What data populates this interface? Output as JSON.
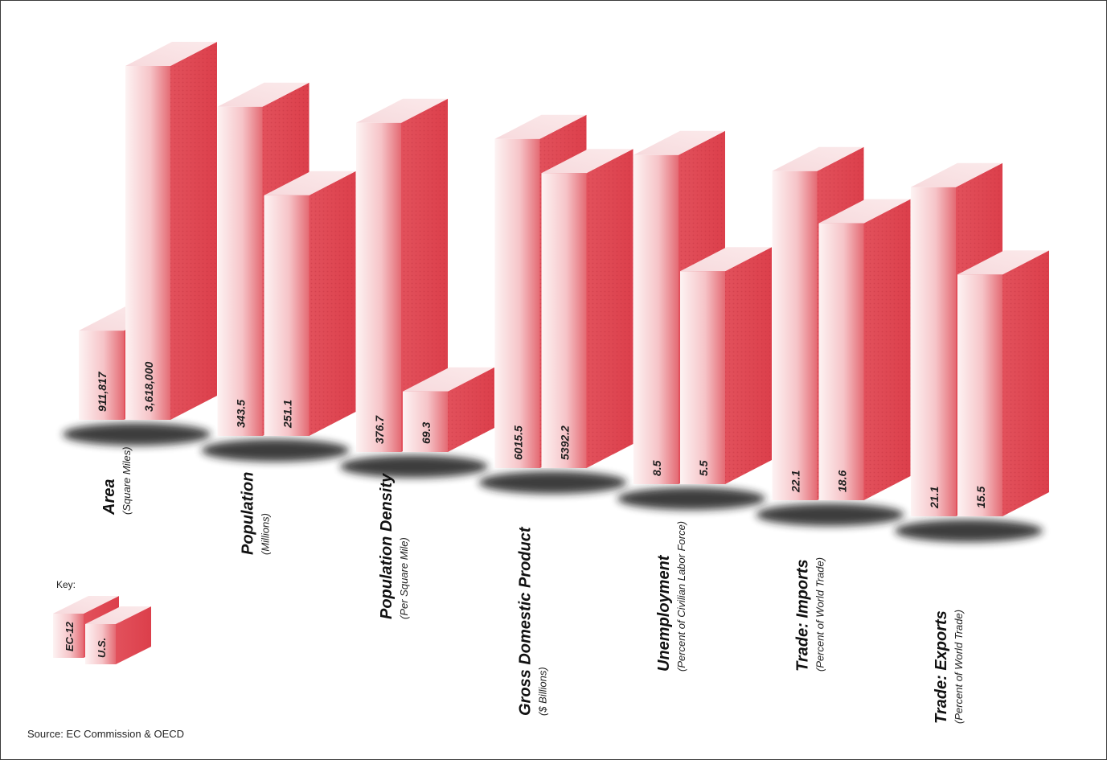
{
  "chart_data": {
    "type": "bar",
    "categories": [
      {
        "name": "Area",
        "unit": "(Square Miles)"
      },
      {
        "name": "Population",
        "unit": "(Millions)"
      },
      {
        "name": "Population Density",
        "unit": "(Per Square Mile)"
      },
      {
        "name": "Gross Domestic Product",
        "unit": "($ Billions)"
      },
      {
        "name": "Unemployment",
        "unit": "(Percent of Civilian Labor Force)"
      },
      {
        "name": "Trade: Imports",
        "unit": "(Percent of World Trade)"
      },
      {
        "name": "Trade: Exports",
        "unit": "(Percent of World Trade)"
      }
    ],
    "series": [
      {
        "name": "EC-12",
        "values": [
          911817,
          343.5,
          376.7,
          6015.5,
          8.5,
          22.1,
          21.1
        ],
        "labels": [
          "911,817",
          "343.5",
          "376.7",
          "6015.5",
          "8.5",
          "22.1",
          "21.1"
        ]
      },
      {
        "name": "U.S.",
        "values": [
          3618000,
          251.1,
          69.3,
          5392.2,
          5.5,
          18.6,
          15.5
        ],
        "labels": [
          "3,618,000",
          "251.1",
          "69.3",
          "5392.2",
          "5.5",
          "18.6",
          "15.5"
        ]
      }
    ],
    "key_title": "Key:",
    "legend_position": "bottom-left",
    "source": "Source: EC Commission & OECD",
    "colors": {
      "front_light": "#fdf1f1",
      "front_dark": "#e46a73",
      "side": "#df4a55",
      "top": "#e25962"
    }
  }
}
